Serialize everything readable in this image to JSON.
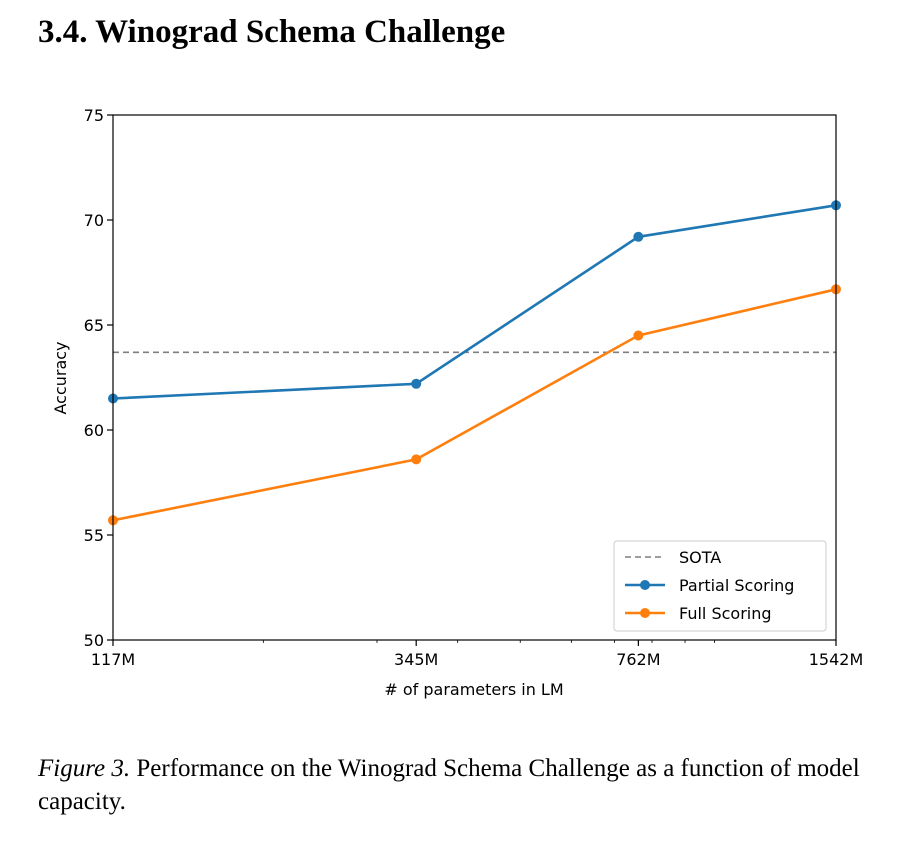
{
  "section": {
    "title": "3.4. Winograd Schema Challenge"
  },
  "caption": {
    "label": "Figure 3.",
    "text": " Performance on the Winograd Schema Challenge as a function of model capacity."
  },
  "chart_data": {
    "type": "line",
    "title": "",
    "xlabel": "# of parameters in LM",
    "ylabel": "Accuracy",
    "x_scale": "log",
    "x_categories": [
      "117M",
      "345M",
      "762M",
      "1542M"
    ],
    "x": [
      117,
      345,
      762,
      1542
    ],
    "ylim": [
      50,
      75
    ],
    "yticks": [
      "50",
      "55",
      "60",
      "65",
      "70",
      "75"
    ],
    "grid": false,
    "legend_position": "lower-right",
    "series": [
      {
        "name": "Partial Scoring",
        "color": "#1f77b4",
        "marker": "circle",
        "values": [
          61.5,
          62.2,
          69.2,
          70.7
        ]
      },
      {
        "name": "Full Scoring",
        "color": "#ff7f0e",
        "marker": "circle",
        "values": [
          55.7,
          58.6,
          64.5,
          66.7
        ]
      }
    ],
    "reference_lines": [
      {
        "name": "SOTA",
        "value": 63.7,
        "color": "#7f7f7f",
        "style": "dashed"
      }
    ],
    "legend_order": [
      "SOTA",
      "Partial Scoring",
      "Full Scoring"
    ]
  }
}
